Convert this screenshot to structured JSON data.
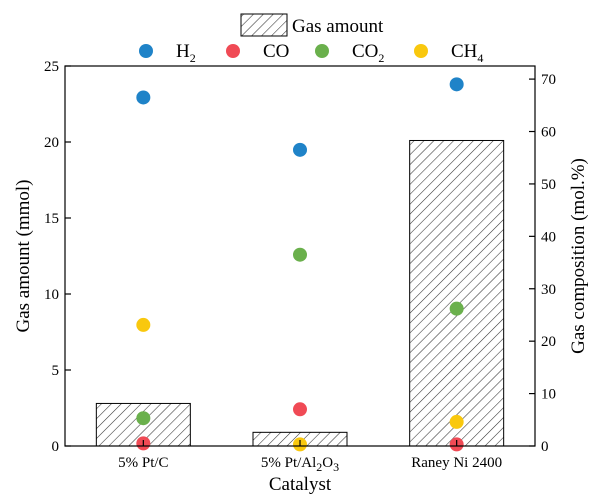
{
  "chart_data": {
    "type": "bar",
    "categories": [
      "5% Pt/C",
      "5% Pt/Al2O3",
      "Raney Ni 2400"
    ],
    "category_labels": [
      {
        "main": "5% Pt/C",
        "parts": []
      },
      {
        "main": "5% Pt/Al",
        "parts": [
          {
            "text": "2",
            "sub": true
          },
          {
            "text": "O",
            "sub": false
          },
          {
            "text": "3",
            "sub": true
          }
        ]
      },
      {
        "main": "Raney Ni 2400",
        "parts": []
      }
    ],
    "xlabel": "Catalyst",
    "ylabel_left": "Gas amount (mmol)",
    "ylabel_right": "Gas composition (mol.%)",
    "ylim_left": [
      0,
      25
    ],
    "ylim_right": [
      0,
      72.5
    ],
    "yticks_left": [
      0,
      5,
      10,
      15,
      20,
      25
    ],
    "yticks_right": [
      0,
      10,
      20,
      30,
      40,
      50,
      60,
      70
    ],
    "bar_series": {
      "name": "Gas amount",
      "axis": "left",
      "values": [
        2.8,
        0.9,
        20.1
      ],
      "pattern": "hatch"
    },
    "scatter_series": [
      {
        "name": "H2",
        "label_main": "H",
        "label_sub": "2",
        "axis": "right",
        "color": "#1f83c8",
        "values": [
          66.5,
          56.5,
          69.0
        ]
      },
      {
        "name": "CO",
        "label_main": "CO",
        "label_sub": "",
        "axis": "right",
        "color": "#f04a55",
        "values": [
          0.5,
          7.0,
          0.3
        ]
      },
      {
        "name": "CO2",
        "label_main": "CO",
        "label_sub": "2",
        "axis": "right",
        "color": "#6ab04c",
        "values": [
          5.3,
          36.5,
          26.2
        ]
      },
      {
        "name": "CH4",
        "label_main": "CH",
        "label_sub": "4",
        "axis": "right",
        "color": "#f9c80e",
        "values": [
          23.1,
          0.3,
          4.6
        ]
      }
    ],
    "legend_position": "top",
    "grid": false
  }
}
